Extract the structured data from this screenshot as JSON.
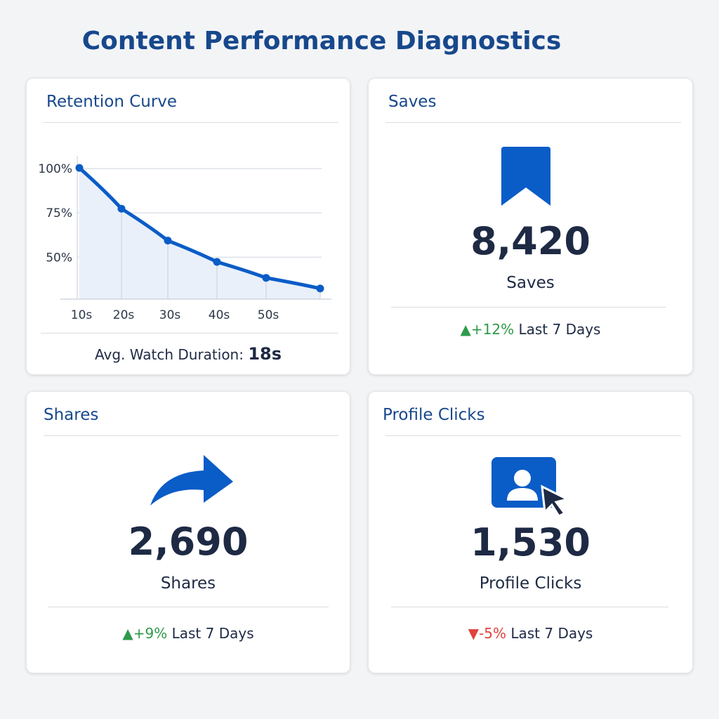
{
  "title": "Content Performance Diagnostics",
  "retention": {
    "title": "Retention Curve",
    "avg_label": "Avg. Watch Duration:",
    "avg_value": "18s"
  },
  "chart_data": {
    "type": "area",
    "x": [
      10,
      20,
      30,
      40,
      50,
      60
    ],
    "x_tick_labels": [
      "10s",
      "20s",
      "30s",
      "40s",
      "50s"
    ],
    "y_tick_labels": [
      "100%",
      "75%",
      "50%"
    ],
    "values": [
      100,
      77,
      59,
      47,
      38,
      32
    ],
    "ylim": [
      26,
      104
    ],
    "grid": true,
    "color": "#0a5cc7"
  },
  "saves": {
    "title": "Saves",
    "value": "8,420",
    "label": "Saves",
    "change": "+12%",
    "period": "Last 7 Days",
    "direction": "up",
    "icon": "bookmark-icon"
  },
  "shares": {
    "title": "Shares",
    "value": "2,690",
    "label": "Shares",
    "change": "+9%",
    "period": "Last 7 Days",
    "direction": "up",
    "icon": "share-arrow-icon"
  },
  "profile": {
    "title": "Profile Clicks",
    "value": "1,530",
    "label": "Profile Clicks",
    "change": "-5%",
    "period": "Last 7 Days",
    "direction": "down",
    "icon": "profile-click-icon"
  },
  "colors": {
    "accent": "#0a5cc7",
    "up": "#2e9a4a",
    "down": "#e0433b",
    "title": "#17488c"
  }
}
